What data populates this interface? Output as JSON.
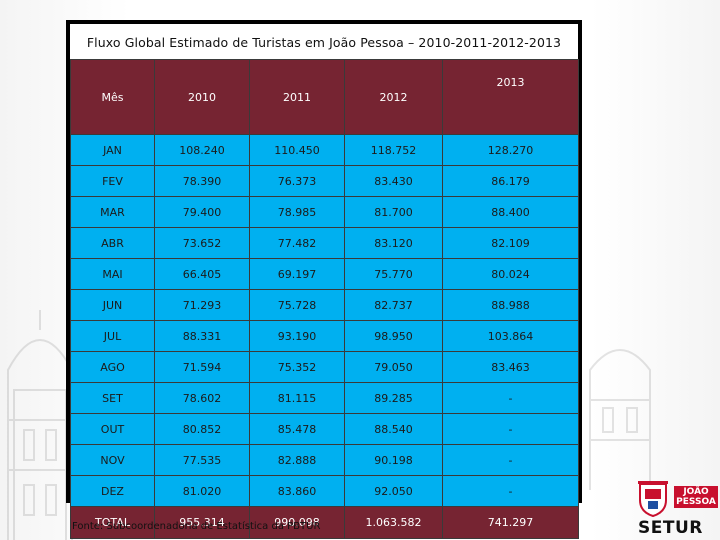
{
  "title": "Fluxo Global Estimado de Turistas em João Pessoa – 2010-2011-2012-2013",
  "table": {
    "headers": [
      "Mês",
      "2010",
      "2011",
      "2012",
      "2013"
    ],
    "rows": [
      [
        "JAN",
        "108.240",
        "110.450",
        "118.752",
        "128.270"
      ],
      [
        "FEV",
        "78.390",
        "76.373",
        "83.430",
        "86.179"
      ],
      [
        "MAR",
        "79.400",
        "78.985",
        "81.700",
        "88.400"
      ],
      [
        "ABR",
        "73.652",
        "77.482",
        "83.120",
        "82.109"
      ],
      [
        "MAI",
        "66.405",
        "69.197",
        "75.770",
        "80.024"
      ],
      [
        "JUN",
        "71.293",
        "75.728",
        "82.737",
        "88.988"
      ],
      [
        "JUL",
        "88.331",
        "93.190",
        "98.950",
        "103.864"
      ],
      [
        "AGO",
        "71.594",
        "75.352",
        "79.050",
        "83.463"
      ],
      [
        "SET",
        "78.602",
        "81.115",
        "89.285",
        "-"
      ],
      [
        "OUT",
        "80.852",
        "85.478",
        "88.540",
        "-"
      ],
      [
        "NOV",
        "77.535",
        "82.888",
        "90.198",
        "-"
      ],
      [
        "DEZ",
        "81.020",
        "83.860",
        "92.050",
        "-"
      ]
    ],
    "total": [
      "TOTAL",
      "955.314",
      "990.098",
      "1.063.582",
      "741.297"
    ]
  },
  "source": "Fonte: Subcoordenadoria de Estatística da PBTUR",
  "logo": {
    "city_line1": "JOÃO",
    "city_line2": "PESSOA",
    "agency": "SETUR"
  },
  "colors": {
    "header_bg": "#762432",
    "row_bg": "#00b0f0",
    "logo_red": "#c8102e"
  }
}
